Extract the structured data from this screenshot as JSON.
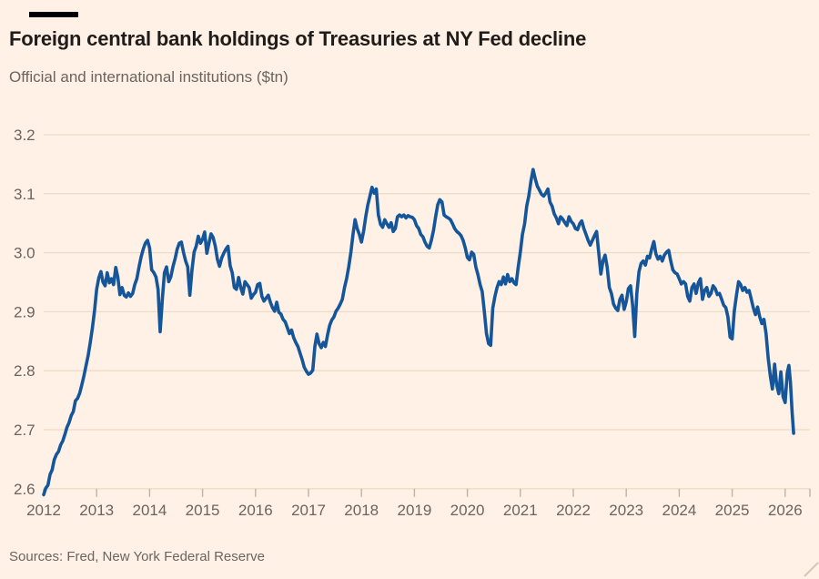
{
  "header": {
    "title": "Foreign central bank holdings of Treasuries at NY Fed decline",
    "subtitle": "Official and international institutions ($tn)"
  },
  "footer": {
    "source": "Sources: Fred, New York Federal Reserve"
  },
  "colors": {
    "background": "#FFF1E5",
    "line": "#15569B",
    "grid": "#EDDBC7",
    "tick": "#C3B2A2",
    "axis_text": "#6B6460",
    "muted_text": "#6B6460",
    "title_text": "#1F1C1A",
    "title_bar": "#000000",
    "resize_handle": "#D5C5B6"
  },
  "chart_data": {
    "type": "line",
    "title": "Foreign central bank holdings of Treasuries at NY Fed decline",
    "subtitle": "Official and international institutions ($tn)",
    "source": "Sources: Fred, New York Federal Reserve",
    "xlabel": "",
    "ylabel": "$tn",
    "grid": "horizontal",
    "legend": "none",
    "xlim": [
      2012.0,
      2026.45
    ],
    "ylim": [
      2.6,
      3.2
    ],
    "x_ticks": [
      2012,
      2013,
      2014,
      2015,
      2016,
      2017,
      2018,
      2019,
      2020,
      2021,
      2022,
      2023,
      2024,
      2025,
      2026
    ],
    "y_ticks": [
      2.6,
      2.7,
      2.8,
      2.9,
      3.0,
      3.1,
      3.2
    ],
    "y_tick_labels": [
      "2.6",
      "2.7",
      "2.8",
      "2.9",
      "3.0",
      "3.1",
      "3.2"
    ],
    "points": [
      [
        2012.0,
        2.59
      ],
      [
        2012.04,
        2.601
      ],
      [
        2012.08,
        2.606
      ],
      [
        2012.12,
        2.624
      ],
      [
        2012.16,
        2.632
      ],
      [
        2012.2,
        2.649
      ],
      [
        2012.24,
        2.658
      ],
      [
        2012.28,
        2.663
      ],
      [
        2012.32,
        2.674
      ],
      [
        2012.36,
        2.681
      ],
      [
        2012.4,
        2.692
      ],
      [
        2012.44,
        2.704
      ],
      [
        2012.48,
        2.712
      ],
      [
        2012.52,
        2.724
      ],
      [
        2012.56,
        2.731
      ],
      [
        2012.6,
        2.749
      ],
      [
        2012.64,
        2.753
      ],
      [
        2012.68,
        2.762
      ],
      [
        2012.72,
        2.776
      ],
      [
        2012.76,
        2.791
      ],
      [
        2012.8,
        2.809
      ],
      [
        2012.84,
        2.826
      ],
      [
        2012.88,
        2.848
      ],
      [
        2012.92,
        2.872
      ],
      [
        2012.96,
        2.902
      ],
      [
        2013.0,
        2.938
      ],
      [
        2013.04,
        2.957
      ],
      [
        2013.08,
        2.968
      ],
      [
        2013.12,
        2.95
      ],
      [
        2013.16,
        2.944
      ],
      [
        2013.2,
        2.966
      ],
      [
        2013.24,
        2.949
      ],
      [
        2013.28,
        2.956
      ],
      [
        2013.32,
        2.946
      ],
      [
        2013.36,
        2.975
      ],
      [
        2013.4,
        2.958
      ],
      [
        2013.44,
        2.929
      ],
      [
        2013.48,
        2.941
      ],
      [
        2013.52,
        2.928
      ],
      [
        2013.56,
        2.925
      ],
      [
        2013.6,
        2.932
      ],
      [
        2013.64,
        2.926
      ],
      [
        2013.68,
        2.931
      ],
      [
        2013.72,
        2.946
      ],
      [
        2013.76,
        2.956
      ],
      [
        2013.8,
        2.976
      ],
      [
        2013.84,
        2.993
      ],
      [
        2013.88,
        3.006
      ],
      [
        2013.92,
        3.016
      ],
      [
        2013.96,
        3.021
      ],
      [
        2014.0,
        3.008
      ],
      [
        2014.04,
        2.971
      ],
      [
        2014.08,
        2.966
      ],
      [
        2014.12,
        2.959
      ],
      [
        2014.16,
        2.938
      ],
      [
        2014.2,
        2.866
      ],
      [
        2014.24,
        2.921
      ],
      [
        2014.28,
        2.966
      ],
      [
        2014.32,
        2.976
      ],
      [
        2014.36,
        2.951
      ],
      [
        2014.4,
        2.959
      ],
      [
        2014.44,
        2.976
      ],
      [
        2014.48,
        2.989
      ],
      [
        2014.52,
        3.006
      ],
      [
        2014.56,
        3.016
      ],
      [
        2014.6,
        3.018
      ],
      [
        2014.64,
        3.001
      ],
      [
        2014.68,
        2.986
      ],
      [
        2014.72,
        2.976
      ],
      [
        2014.76,
        2.928
      ],
      [
        2014.8,
        2.971
      ],
      [
        2014.84,
        3.001
      ],
      [
        2014.88,
        3.011
      ],
      [
        2014.92,
        3.028
      ],
      [
        2014.96,
        3.016
      ],
      [
        2015.0,
        3.023
      ],
      [
        2015.04,
        3.035
      ],
      [
        2015.08,
        2.999
      ],
      [
        2015.12,
        3.016
      ],
      [
        2015.16,
        3.032
      ],
      [
        2015.2,
        3.026
      ],
      [
        2015.24,
        3.011
      ],
      [
        2015.28,
        2.989
      ],
      [
        2015.32,
        2.977
      ],
      [
        2015.36,
        2.991
      ],
      [
        2015.4,
        2.999
      ],
      [
        2015.44,
        3.006
      ],
      [
        2015.48,
        3.011
      ],
      [
        2015.52,
        2.978
      ],
      [
        2015.56,
        2.966
      ],
      [
        2015.6,
        2.941
      ],
      [
        2015.64,
        2.938
      ],
      [
        2015.68,
        2.958
      ],
      [
        2015.72,
        2.941
      ],
      [
        2015.76,
        2.93
      ],
      [
        2015.8,
        2.951
      ],
      [
        2015.84,
        2.946
      ],
      [
        2015.88,
        2.941
      ],
      [
        2015.92,
        2.923
      ],
      [
        2015.96,
        2.929
      ],
      [
        2016.0,
        2.933
      ],
      [
        2016.04,
        2.946
      ],
      [
        2016.08,
        2.948
      ],
      [
        2016.12,
        2.926
      ],
      [
        2016.16,
        2.918
      ],
      [
        2016.2,
        2.923
      ],
      [
        2016.24,
        2.928
      ],
      [
        2016.28,
        2.916
      ],
      [
        2016.32,
        2.907
      ],
      [
        2016.36,
        2.901
      ],
      [
        2016.4,
        2.916
      ],
      [
        2016.44,
        2.899
      ],
      [
        2016.48,
        2.896
      ],
      [
        2016.52,
        2.887
      ],
      [
        2016.56,
        2.883
      ],
      [
        2016.6,
        2.873
      ],
      [
        2016.64,
        2.863
      ],
      [
        2016.68,
        2.869
      ],
      [
        2016.72,
        2.856
      ],
      [
        2016.76,
        2.848
      ],
      [
        2016.8,
        2.841
      ],
      [
        2016.84,
        2.83
      ],
      [
        2016.88,
        2.819
      ],
      [
        2016.92,
        2.806
      ],
      [
        2016.96,
        2.799
      ],
      [
        2017.0,
        2.794
      ],
      [
        2017.04,
        2.796
      ],
      [
        2017.08,
        2.801
      ],
      [
        2017.12,
        2.841
      ],
      [
        2017.16,
        2.862
      ],
      [
        2017.2,
        2.846
      ],
      [
        2017.24,
        2.839
      ],
      [
        2017.28,
        2.848
      ],
      [
        2017.32,
        2.841
      ],
      [
        2017.36,
        2.861
      ],
      [
        2017.4,
        2.877
      ],
      [
        2017.44,
        2.886
      ],
      [
        2017.48,
        2.891
      ],
      [
        2017.52,
        2.901
      ],
      [
        2017.56,
        2.906
      ],
      [
        2017.6,
        2.913
      ],
      [
        2017.64,
        2.921
      ],
      [
        2017.68,
        2.941
      ],
      [
        2017.72,
        2.956
      ],
      [
        2017.76,
        2.976
      ],
      [
        2017.8,
        3.001
      ],
      [
        2017.84,
        3.031
      ],
      [
        2017.88,
        3.056
      ],
      [
        2017.92,
        3.041
      ],
      [
        2017.96,
        3.031
      ],
      [
        2018.0,
        3.018
      ],
      [
        2018.04,
        3.036
      ],
      [
        2018.08,
        3.061
      ],
      [
        2018.12,
        3.081
      ],
      [
        2018.16,
        3.096
      ],
      [
        2018.2,
        3.111
      ],
      [
        2018.24,
        3.101
      ],
      [
        2018.28,
        3.108
      ],
      [
        2018.32,
        3.064
      ],
      [
        2018.36,
        3.048
      ],
      [
        2018.4,
        3.043
      ],
      [
        2018.44,
        3.056
      ],
      [
        2018.48,
        3.049
      ],
      [
        2018.52,
        3.043
      ],
      [
        2018.56,
        3.051
      ],
      [
        2018.6,
        3.036
      ],
      [
        2018.64,
        3.041
      ],
      [
        2018.68,
        3.061
      ],
      [
        2018.72,
        3.064
      ],
      [
        2018.76,
        3.061
      ],
      [
        2018.8,
        3.064
      ],
      [
        2018.84,
        3.059
      ],
      [
        2018.88,
        3.063
      ],
      [
        2018.92,
        3.061
      ],
      [
        2018.96,
        3.06
      ],
      [
        2019.0,
        3.056
      ],
      [
        2019.04,
        3.046
      ],
      [
        2019.08,
        3.041
      ],
      [
        2019.12,
        3.031
      ],
      [
        2019.16,
        3.027
      ],
      [
        2019.2,
        3.018
      ],
      [
        2019.24,
        3.011
      ],
      [
        2019.28,
        3.008
      ],
      [
        2019.32,
        3.021
      ],
      [
        2019.36,
        3.038
      ],
      [
        2019.4,
        3.061
      ],
      [
        2019.44,
        3.081
      ],
      [
        2019.48,
        3.09
      ],
      [
        2019.52,
        3.086
      ],
      [
        2019.56,
        3.064
      ],
      [
        2019.6,
        3.061
      ],
      [
        2019.64,
        3.059
      ],
      [
        2019.68,
        3.056
      ],
      [
        2019.72,
        3.049
      ],
      [
        2019.76,
        3.041
      ],
      [
        2019.8,
        3.036
      ],
      [
        2019.84,
        3.033
      ],
      [
        2019.88,
        3.029
      ],
      [
        2019.92,
        3.021
      ],
      [
        2019.96,
        3.008
      ],
      [
        2020.0,
        2.992
      ],
      [
        2020.04,
        2.988
      ],
      [
        2020.08,
        3.001
      ],
      [
        2020.12,
        2.997
      ],
      [
        2020.16,
        2.976
      ],
      [
        2020.2,
        2.963
      ],
      [
        2020.24,
        2.946
      ],
      [
        2020.28,
        2.934
      ],
      [
        2020.32,
        2.901
      ],
      [
        2020.36,
        2.863
      ],
      [
        2020.4,
        2.846
      ],
      [
        2020.44,
        2.843
      ],
      [
        2020.48,
        2.906
      ],
      [
        2020.52,
        2.926
      ],
      [
        2020.56,
        2.941
      ],
      [
        2020.6,
        2.951
      ],
      [
        2020.64,
        2.946
      ],
      [
        2020.68,
        2.959
      ],
      [
        2020.72,
        2.947
      ],
      [
        2020.76,
        2.963
      ],
      [
        2020.8,
        2.951
      ],
      [
        2020.84,
        2.956
      ],
      [
        2020.88,
        2.949
      ],
      [
        2020.92,
        2.946
      ],
      [
        2020.96,
        2.976
      ],
      [
        2021.0,
        3.001
      ],
      [
        2021.04,
        3.031
      ],
      [
        2021.08,
        3.049
      ],
      [
        2021.12,
        3.079
      ],
      [
        2021.16,
        3.096
      ],
      [
        2021.2,
        3.121
      ],
      [
        2021.24,
        3.141
      ],
      [
        2021.28,
        3.126
      ],
      [
        2021.32,
        3.113
      ],
      [
        2021.36,
        3.106
      ],
      [
        2021.4,
        3.099
      ],
      [
        2021.44,
        3.096
      ],
      [
        2021.48,
        3.101
      ],
      [
        2021.52,
        3.108
      ],
      [
        2021.56,
        3.086
      ],
      [
        2021.6,
        3.079
      ],
      [
        2021.64,
        3.066
      ],
      [
        2021.68,
        3.059
      ],
      [
        2021.72,
        3.049
      ],
      [
        2021.76,
        3.061
      ],
      [
        2021.8,
        3.057
      ],
      [
        2021.84,
        3.051
      ],
      [
        2021.88,
        3.046
      ],
      [
        2021.92,
        3.061
      ],
      [
        2021.96,
        3.053
      ],
      [
        2022.0,
        3.049
      ],
      [
        2022.04,
        3.041
      ],
      [
        2022.08,
        3.039
      ],
      [
        2022.12,
        3.049
      ],
      [
        2022.16,
        3.054
      ],
      [
        2022.2,
        3.041
      ],
      [
        2022.24,
        3.031
      ],
      [
        2022.28,
        3.021
      ],
      [
        2022.32,
        3.013
      ],
      [
        2022.36,
        3.021
      ],
      [
        2022.4,
        3.029
      ],
      [
        2022.44,
        3.036
      ],
      [
        2022.48,
        3.001
      ],
      [
        2022.52,
        2.964
      ],
      [
        2022.56,
        2.986
      ],
      [
        2022.6,
        2.996
      ],
      [
        2022.64,
        2.976
      ],
      [
        2022.68,
        2.941
      ],
      [
        2022.72,
        2.931
      ],
      [
        2022.76,
        2.913
      ],
      [
        2022.8,
        2.906
      ],
      [
        2022.84,
        2.902
      ],
      [
        2022.88,
        2.921
      ],
      [
        2022.92,
        2.928
      ],
      [
        2022.96,
        2.904
      ],
      [
        2023.0,
        2.917
      ],
      [
        2023.04,
        2.939
      ],
      [
        2023.08,
        2.944
      ],
      [
        2023.12,
        2.911
      ],
      [
        2023.16,
        2.858
      ],
      [
        2023.2,
        2.931
      ],
      [
        2023.24,
        2.968
      ],
      [
        2023.28,
        2.982
      ],
      [
        2023.32,
        2.986
      ],
      [
        2023.36,
        2.979
      ],
      [
        2023.4,
        2.994
      ],
      [
        2023.44,
        2.991
      ],
      [
        2023.48,
        3.006
      ],
      [
        2023.52,
        3.019
      ],
      [
        2023.56,
        2.998
      ],
      [
        2023.6,
        2.989
      ],
      [
        2023.64,
        2.994
      ],
      [
        2023.68,
        2.986
      ],
      [
        2023.72,
        2.996
      ],
      [
        2023.76,
        3.001
      ],
      [
        2023.8,
        3.004
      ],
      [
        2023.84,
        2.986
      ],
      [
        2023.88,
        2.971
      ],
      [
        2023.92,
        2.966
      ],
      [
        2023.96,
        2.964
      ],
      [
        2024.0,
        2.956
      ],
      [
        2024.04,
        2.947
      ],
      [
        2024.08,
        2.951
      ],
      [
        2024.12,
        2.947
      ],
      [
        2024.16,
        2.926
      ],
      [
        2024.2,
        2.918
      ],
      [
        2024.24,
        2.941
      ],
      [
        2024.28,
        2.947
      ],
      [
        2024.32,
        2.931
      ],
      [
        2024.36,
        2.949
      ],
      [
        2024.4,
        2.956
      ],
      [
        2024.44,
        2.921
      ],
      [
        2024.48,
        2.936
      ],
      [
        2024.52,
        2.941
      ],
      [
        2024.56,
        2.926
      ],
      [
        2024.6,
        2.931
      ],
      [
        2024.64,
        2.944
      ],
      [
        2024.68,
        2.939
      ],
      [
        2024.72,
        2.929
      ],
      [
        2024.76,
        2.931
      ],
      [
        2024.8,
        2.921
      ],
      [
        2024.84,
        2.911
      ],
      [
        2024.88,
        2.907
      ],
      [
        2024.92,
        2.891
      ],
      [
        2024.96,
        2.857
      ],
      [
        2025.0,
        2.854
      ],
      [
        2025.04,
        2.901
      ],
      [
        2025.08,
        2.928
      ],
      [
        2025.12,
        2.951
      ],
      [
        2025.16,
        2.946
      ],
      [
        2025.2,
        2.936
      ],
      [
        2025.24,
        2.941
      ],
      [
        2025.28,
        2.933
      ],
      [
        2025.32,
        2.936
      ],
      [
        2025.36,
        2.921
      ],
      [
        2025.4,
        2.906
      ],
      [
        2025.44,
        2.895
      ],
      [
        2025.48,
        2.908
      ],
      [
        2025.52,
        2.891
      ],
      [
        2025.56,
        2.88
      ],
      [
        2025.6,
        2.887
      ],
      [
        2025.64,
        2.863
      ],
      [
        2025.68,
        2.821
      ],
      [
        2025.72,
        2.791
      ],
      [
        2025.76,
        2.769
      ],
      [
        2025.8,
        2.811
      ],
      [
        2025.84,
        2.776
      ],
      [
        2025.88,
        2.761
      ],
      [
        2025.92,
        2.798
      ],
      [
        2025.96,
        2.756
      ],
      [
        2026.0,
        2.746
      ],
      [
        2026.04,
        2.796
      ],
      [
        2026.07,
        2.809
      ],
      [
        2026.1,
        2.781
      ],
      [
        2026.13,
        2.731
      ],
      [
        2026.16,
        2.694
      ]
    ]
  }
}
